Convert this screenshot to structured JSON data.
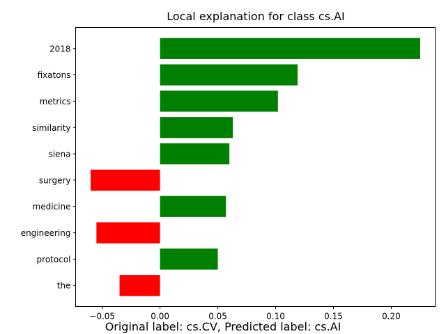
{
  "chart_data": {
    "type": "bar",
    "orientation": "horizontal",
    "title": "Local explanation for class cs.AI",
    "xlabel": "",
    "ylabel": "",
    "categories": [
      "2018",
      "fixatons",
      "metrics",
      "similarity",
      "siena",
      "surgery",
      "medicine",
      "engineering",
      "protocol",
      "the"
    ],
    "values": [
      0.225,
      0.119,
      0.102,
      0.063,
      0.06,
      -0.06,
      0.057,
      -0.055,
      0.05,
      -0.035
    ],
    "xlim": [
      -0.073,
      0.238
    ],
    "x_ticks": [
      -0.05,
      0.0,
      0.05,
      0.1,
      0.15,
      0.2
    ],
    "x_tick_labels": [
      "−0.05",
      "0.00",
      "0.05",
      "0.10",
      "0.15",
      "0.20"
    ],
    "positive_color": "#008000",
    "negative_color": "#ff0000",
    "grid": false,
    "legend": "none"
  },
  "caption": "Original label: cs.CV, Predicted label: cs.AI"
}
